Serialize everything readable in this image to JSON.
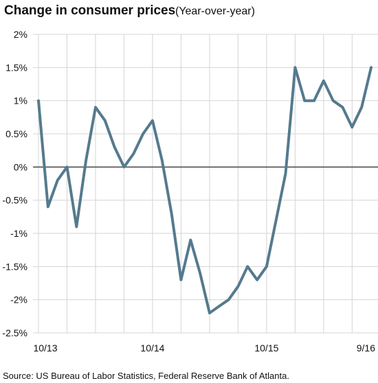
{
  "chart_data": {
    "type": "line",
    "title": "Change in consumer prices",
    "subtitle": "(Year-over-year)",
    "source": "Source: US Bureau of Labor Statistics, Federal Reserve Bank of Atlanta.",
    "xlabel": "",
    "ylabel": "",
    "ylim": [
      -2.5,
      2
    ],
    "grid": true,
    "yticks": [
      {
        "value": 2,
        "label": "2%"
      },
      {
        "value": 1.5,
        "label": "1.5%"
      },
      {
        "value": 1,
        "label": "1%"
      },
      {
        "value": 0.5,
        "label": "0.5%"
      },
      {
        "value": 0,
        "label": "0%"
      },
      {
        "value": -0.5,
        "label": "-0.5%"
      },
      {
        "value": -1,
        "label": "-1%"
      },
      {
        "value": -1.5,
        "label": "-1.5%"
      },
      {
        "value": -2,
        "label": "-2%"
      },
      {
        "value": -2.5,
        "label": "-2.5%"
      }
    ],
    "xticks": [
      {
        "index": 0,
        "label": "10/13"
      },
      {
        "index": 12,
        "label": "10/14"
      },
      {
        "index": 24,
        "label": "10/15"
      },
      {
        "index": 35,
        "label": "9/16"
      }
    ],
    "line_color": "#557a8e",
    "zero_line_color": "#444444",
    "grid_color": "#d4d4d4",
    "values": [
      1.0,
      -0.6,
      -0.2,
      0.0,
      -0.9,
      0.1,
      0.9,
      0.7,
      0.3,
      0.0,
      0.2,
      0.5,
      0.7,
      0.1,
      -0.7,
      -1.7,
      -1.1,
      -1.6,
      -2.2,
      -2.1,
      -2.0,
      -1.8,
      -1.5,
      -1.7,
      -1.5,
      -0.8,
      -0.1,
      1.5,
      1.0,
      1.0,
      1.3,
      1.0,
      0.9,
      0.6,
      0.9,
      1.5
    ]
  }
}
